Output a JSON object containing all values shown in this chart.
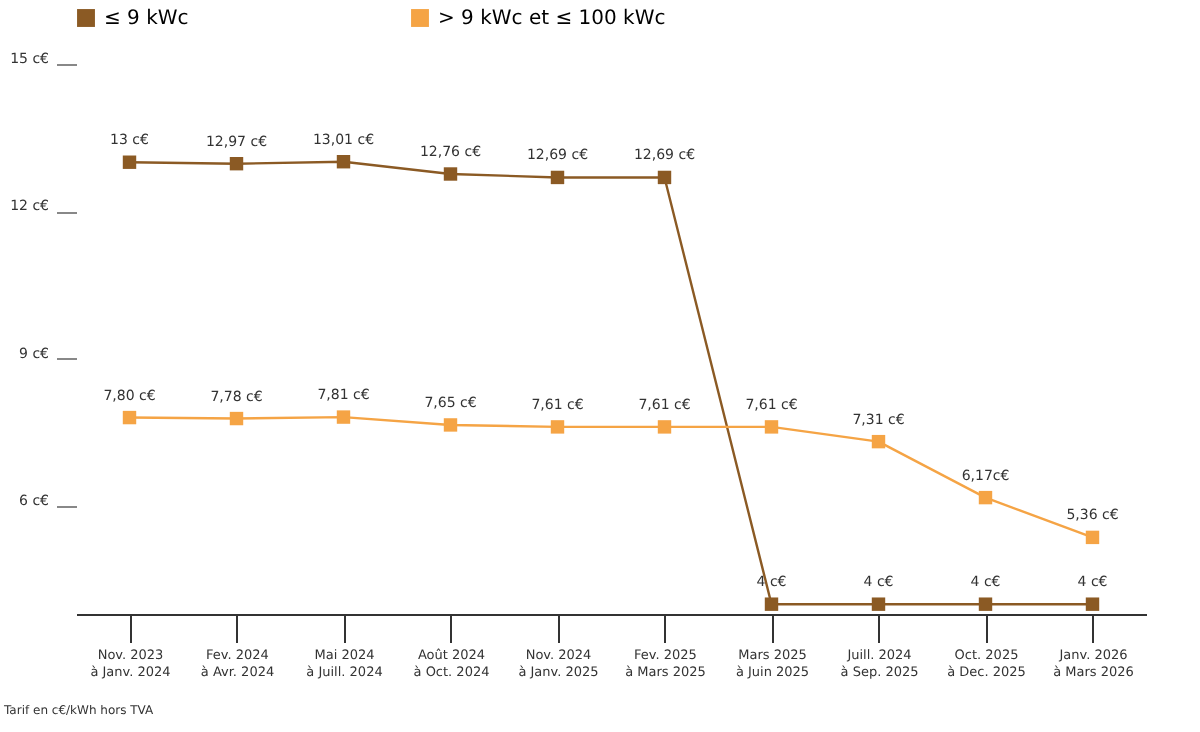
{
  "chart_data": {
    "type": "line",
    "categories": [
      "Nov. 2023\nà Janv. 2024",
      "Fev. 2024\nà Avr. 2024",
      "Mai 2024\nà Juill. 2024",
      "Août 2024\nà Oct. 2024",
      "Nov. 2024\nà Janv. 2025",
      "Fev. 2025\nà Mars 2025",
      "Mars 2025\nà Juin 2025",
      "Juill. 2024\nà Sep. 2025",
      "Oct. 2025\nà Dec. 2025",
      "Janv. 2026\nà Mars 2026"
    ],
    "series": [
      {
        "name": "≤ 9 kWc",
        "color": "#8b5a24",
        "values": [
          13,
          12.97,
          13.01,
          12.76,
          12.69,
          12.69,
          4,
          4,
          4,
          4
        ],
        "value_labels": [
          "13 c€",
          "12,97 c€",
          "13,01 c€",
          "12,76 c€",
          "12,69 c€",
          "12,69 c€",
          "4 c€",
          "4 c€",
          "4 c€",
          "4 c€"
        ]
      },
      {
        "name": "> 9 kWc et ≤ 100 kWc",
        "color": "#f5a445",
        "values": [
          7.8,
          7.78,
          7.81,
          7.65,
          7.61,
          7.61,
          7.61,
          7.31,
          6.17,
          5.36
        ],
        "value_labels": [
          "7,80 c€",
          "7,78 c€",
          "7,81 c€",
          "7,65 c€",
          "7,61 c€",
          "7,61 c€",
          "7,61 c€",
          "7,31 c€",
          "6,17c€",
          "5,36 c€"
        ]
      }
    ],
    "ylim": [
      3.8,
      15
    ],
    "yticks": [
      {
        "value": 6,
        "label": "6 c€"
      },
      {
        "value": 9,
        "label": "9 c€"
      },
      {
        "value": 12,
        "label": "12 c€"
      },
      {
        "value": 15,
        "label": "15 c€"
      }
    ],
    "grid": false,
    "legend": "top",
    "marker": "square",
    "line_style": "solid",
    "annotations": [
      "Tarif en c€/kWh hors TVA"
    ]
  }
}
